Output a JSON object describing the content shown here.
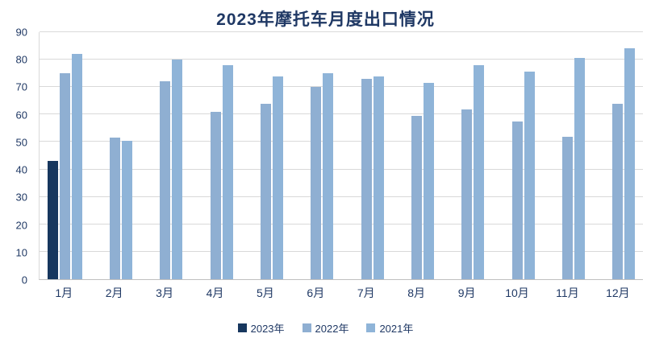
{
  "chart_data": {
    "type": "bar",
    "title": "2023年摩托车月度出口情况",
    "categories": [
      "1月",
      "2月",
      "3月",
      "4月",
      "5月",
      "6月",
      "7月",
      "8月",
      "9月",
      "10月",
      "11月",
      "12月"
    ],
    "series": [
      {
        "name": "2023年",
        "color": "#17375E",
        "values": [
          43,
          null,
          null,
          null,
          null,
          null,
          null,
          null,
          null,
          null,
          null,
          null
        ]
      },
      {
        "name": "2022年",
        "color": "#8FAFD2",
        "values": [
          75,
          51.5,
          72,
          61,
          64,
          70,
          73,
          59.5,
          62,
          57.5,
          52,
          64
        ]
      },
      {
        "name": "2021年",
        "color": "#8FB4D8",
        "values": [
          82,
          50.5,
          80,
          78,
          74,
          75,
          74,
          71.5,
          78,
          75.5,
          80.5,
          84
        ]
      }
    ],
    "ylim": [
      0,
      90
    ],
    "yticks": [
      0,
      10,
      20,
      30,
      40,
      50,
      60,
      70,
      80,
      90
    ],
    "grid": true,
    "legend_position": "bottom",
    "colors": {
      "title_text": "#1F3864",
      "axis_text": "#1F3864",
      "gridline": "#D9D9D9",
      "background": "#FFFFFF"
    }
  }
}
